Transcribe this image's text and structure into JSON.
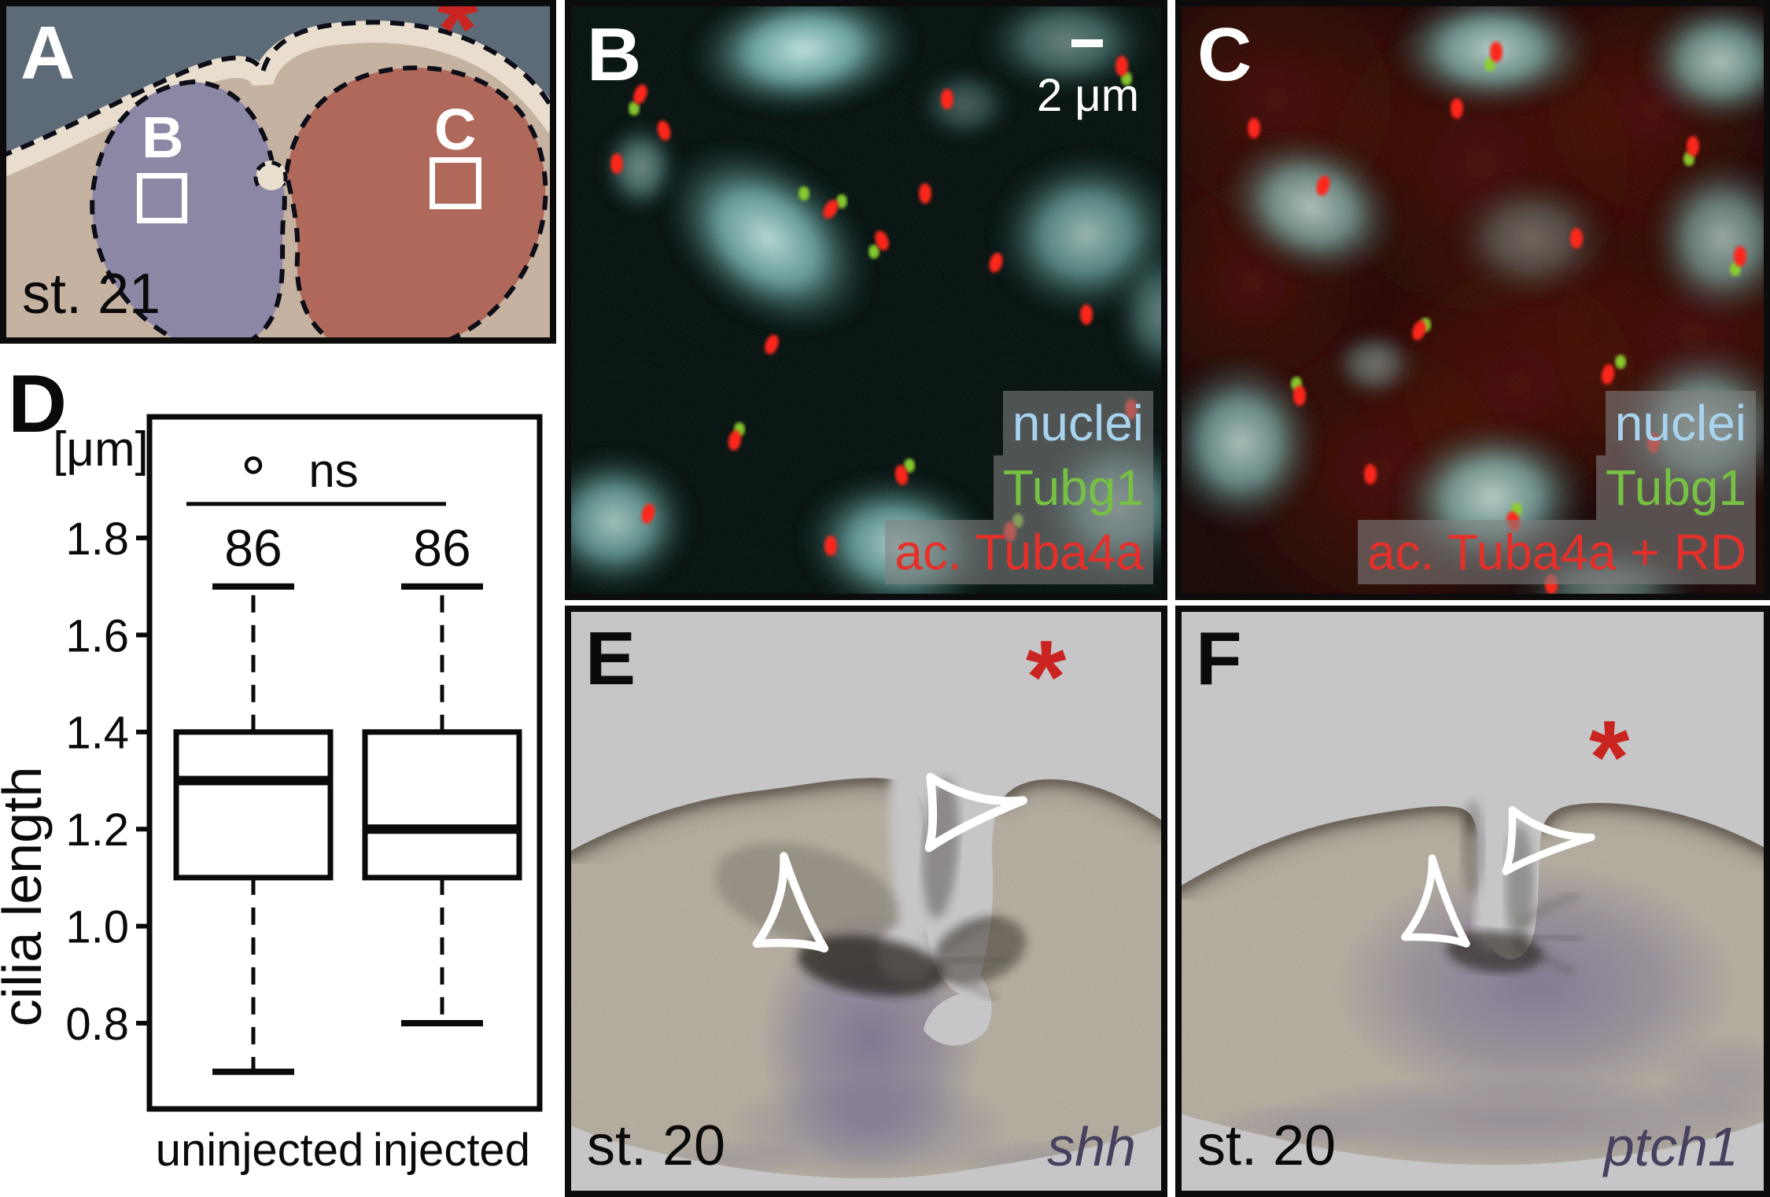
{
  "colors": {
    "asterisk_red": "#c9241f",
    "nuclei_label": "#a7d3ee",
    "tubg1_label": "#76c043",
    "tuba4a_label": "#e5302a",
    "gene_label": "#47415f",
    "stain_purple": "#6c6190"
  },
  "figure": {
    "panels": {
      "A": {
        "letter": "A",
        "stage": "st. 21",
        "asterisk": "*",
        "region_b_label": "B",
        "region_c_label": "C"
      },
      "B": {
        "letter": "B",
        "scale_bar_label": "2 μm",
        "legend": [
          {
            "label": "nuclei",
            "color": "#a7d3ee"
          },
          {
            "label": "Tubg1",
            "color": "#76c043"
          },
          {
            "label": "ac. Tuba4a",
            "color": "#e5302a"
          }
        ]
      },
      "C": {
        "letter": "C",
        "legend": [
          {
            "label": "nuclei",
            "color": "#a7d3ee"
          },
          {
            "label": "Tubg1",
            "color": "#76c043"
          },
          {
            "label": "ac. Tuba4a + RD",
            "color": "#e5302a"
          }
        ]
      },
      "D": {
        "letter": "D"
      },
      "E": {
        "letter": "E",
        "stage": "st. 20",
        "gene": "shh",
        "asterisk": "*"
      },
      "F": {
        "letter": "F",
        "stage": "st. 20",
        "gene": "ptch1",
        "asterisk": "*"
      }
    }
  },
  "chart_data": {
    "type": "boxplot",
    "title": "",
    "ylabel": "cilia length",
    "y_unit_label": "[μm]",
    "yticks": [
      1.8,
      1.6,
      1.4,
      1.2,
      1.0,
      0.8
    ],
    "ylim": [
      0.62,
      2.05
    ],
    "grid": false,
    "categories": [
      "uninjected",
      "injected"
    ],
    "series": [
      {
        "name": "uninjected",
        "n": 86,
        "whisker_low": 0.7,
        "q1": 1.1,
        "median": 1.3,
        "q3": 1.4,
        "whisker_high": 1.7,
        "outliers": [
          1.95
        ]
      },
      {
        "name": "injected",
        "n": 86,
        "whisker_low": 0.8,
        "q1": 1.1,
        "median": 1.2,
        "q3": 1.4,
        "whisker_high": 1.7,
        "outliers": []
      }
    ],
    "significance": {
      "label": "ns",
      "between": [
        "uninjected",
        "injected"
      ]
    }
  }
}
